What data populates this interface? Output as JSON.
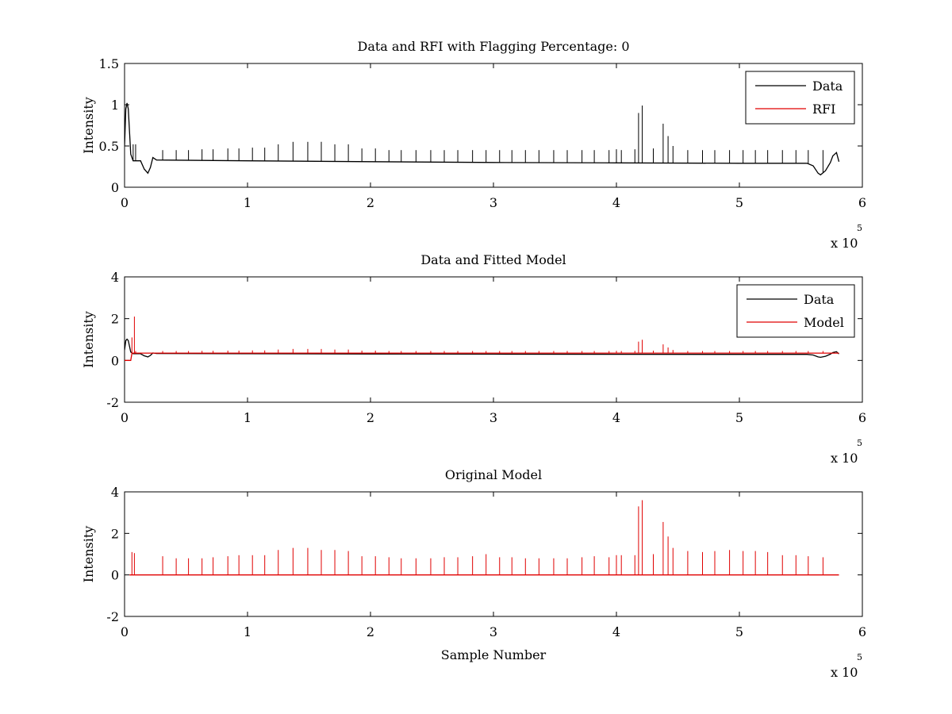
{
  "chart_data": [
    {
      "type": "line",
      "title": "Data and RFI with Flagging Percentage: 0",
      "xlabel": "",
      "ylabel": "Intensity",
      "xlim": [
        0,
        6
      ],
      "ylim": [
        0,
        1.5
      ],
      "x_multiplier": "x 10",
      "x_multiplier_exp": "5",
      "xticks": [
        "0",
        "1",
        "2",
        "3",
        "4",
        "5",
        "6"
      ],
      "yticks": [
        "0",
        "0.5",
        "1",
        "1.5"
      ],
      "legend": {
        "position": "top-right",
        "entries": [
          {
            "name": "Data",
            "color": "#000000"
          },
          {
            "name": "RFI",
            "color": "#e00000"
          }
        ]
      },
      "series": [
        {
          "name": "Data",
          "color": "#000000",
          "baseline": [
            [
              0,
              0.5
            ],
            [
              0.01,
              0.95
            ],
            [
              0.02,
              1.02
            ],
            [
              0.03,
              0.95
            ],
            [
              0.05,
              0.4
            ],
            [
              0.07,
              0.32
            ],
            [
              0.13,
              0.32
            ],
            [
              0.16,
              0.22
            ],
            [
              0.19,
              0.17
            ],
            [
              0.21,
              0.24
            ],
            [
              0.23,
              0.36
            ],
            [
              0.26,
              0.33
            ],
            [
              1,
              0.32
            ],
            [
              2,
              0.31
            ],
            [
              3,
              0.3
            ],
            [
              4,
              0.295
            ],
            [
              5,
              0.29
            ],
            [
              5.55,
              0.29
            ],
            [
              5.6,
              0.26
            ],
            [
              5.64,
              0.17
            ],
            [
              5.66,
              0.15
            ],
            [
              5.7,
              0.2
            ],
            [
              5.74,
              0.3
            ],
            [
              5.76,
              0.38
            ],
            [
              5.79,
              0.42
            ],
            [
              5.81,
              0.31
            ]
          ],
          "spikes": [
            [
              0.07,
              0.52
            ],
            [
              0.09,
              0.52
            ],
            [
              0.31,
              0.45
            ],
            [
              0.42,
              0.45
            ],
            [
              0.52,
              0.45
            ],
            [
              0.63,
              0.46
            ],
            [
              0.72,
              0.46
            ],
            [
              0.84,
              0.47
            ],
            [
              0.93,
              0.47
            ],
            [
              1.04,
              0.48
            ],
            [
              1.14,
              0.48
            ],
            [
              1.25,
              0.52
            ],
            [
              1.37,
              0.55
            ],
            [
              1.49,
              0.55
            ],
            [
              1.6,
              0.55
            ],
            [
              1.71,
              0.52
            ],
            [
              1.82,
              0.52
            ],
            [
              1.93,
              0.47
            ],
            [
              2.04,
              0.47
            ],
            [
              2.15,
              0.45
            ],
            [
              2.25,
              0.45
            ],
            [
              2.37,
              0.45
            ],
            [
              2.49,
              0.45
            ],
            [
              2.6,
              0.45
            ],
            [
              2.71,
              0.45
            ],
            [
              2.83,
              0.45
            ],
            [
              2.94,
              0.45
            ],
            [
              3.05,
              0.45
            ],
            [
              3.15,
              0.45
            ],
            [
              3.26,
              0.45
            ],
            [
              3.37,
              0.45
            ],
            [
              3.49,
              0.45
            ],
            [
              3.6,
              0.45
            ],
            [
              3.72,
              0.45
            ],
            [
              3.82,
              0.45
            ],
            [
              3.94,
              0.45
            ],
            [
              4.0,
              0.46
            ],
            [
              4.04,
              0.45
            ],
            [
              4.15,
              0.46
            ],
            [
              4.18,
              0.9
            ],
            [
              4.21,
              0.99
            ],
            [
              4.3,
              0.47
            ],
            [
              4.38,
              0.77
            ],
            [
              4.42,
              0.62
            ],
            [
              4.46,
              0.5
            ],
            [
              4.58,
              0.45
            ],
            [
              4.7,
              0.45
            ],
            [
              4.8,
              0.45
            ],
            [
              4.92,
              0.45
            ],
            [
              5.03,
              0.45
            ],
            [
              5.13,
              0.45
            ],
            [
              5.23,
              0.45
            ],
            [
              5.35,
              0.45
            ],
            [
              5.46,
              0.45
            ],
            [
              5.56,
              0.45
            ],
            [
              5.68,
              0.45
            ]
          ]
        },
        {
          "name": "RFI",
          "color": "#e00000",
          "points": []
        }
      ]
    },
    {
      "type": "line",
      "title": "Data and Fitted Model",
      "xlabel": "",
      "ylabel": "Intensity",
      "xlim": [
        0,
        6
      ],
      "ylim": [
        -2,
        4
      ],
      "x_multiplier": "x 10",
      "x_multiplier_exp": "5",
      "xticks": [
        "0",
        "1",
        "2",
        "3",
        "4",
        "5",
        "6"
      ],
      "yticks": [
        "-2",
        "0",
        "2",
        "4"
      ],
      "legend": {
        "position": "top-right",
        "entries": [
          {
            "name": "Data",
            "color": "#000000"
          },
          {
            "name": "Model",
            "color": "#e00000"
          }
        ]
      },
      "series": [
        {
          "name": "Data",
          "color": "#000000",
          "baseline": [
            [
              0,
              0.5
            ],
            [
              0.01,
              0.95
            ],
            [
              0.02,
              1.02
            ],
            [
              0.03,
              0.95
            ],
            [
              0.05,
              0.4
            ],
            [
              0.07,
              0.32
            ],
            [
              0.13,
              0.32
            ],
            [
              0.16,
              0.22
            ],
            [
              0.19,
              0.17
            ],
            [
              0.21,
              0.24
            ],
            [
              0.23,
              0.36
            ],
            [
              0.26,
              0.33
            ],
            [
              1,
              0.32
            ],
            [
              2,
              0.31
            ],
            [
              3,
              0.3
            ],
            [
              4,
              0.295
            ],
            [
              5,
              0.29
            ],
            [
              5.55,
              0.29
            ],
            [
              5.6,
              0.26
            ],
            [
              5.64,
              0.17
            ],
            [
              5.66,
              0.15
            ],
            [
              5.7,
              0.2
            ],
            [
              5.74,
              0.3
            ],
            [
              5.76,
              0.38
            ],
            [
              5.79,
              0.42
            ],
            [
              5.81,
              0.31
            ]
          ],
          "spikes": []
        },
        {
          "name": "Model",
          "color": "#e00000",
          "baseline": [
            [
              0,
              0
            ],
            [
              0.05,
              0
            ],
            [
              0.06,
              0.35
            ],
            [
              5.81,
              0.35
            ]
          ],
          "spikes": [
            [
              0.06,
              1.1
            ],
            [
              0.08,
              2.1
            ],
            [
              0.09,
              0.45
            ],
            [
              0.31,
              0.45
            ],
            [
              0.42,
              0.45
            ],
            [
              0.52,
              0.45
            ],
            [
              0.63,
              0.46
            ],
            [
              0.72,
              0.46
            ],
            [
              0.84,
              0.47
            ],
            [
              0.93,
              0.47
            ],
            [
              1.04,
              0.48
            ],
            [
              1.14,
              0.48
            ],
            [
              1.25,
              0.52
            ],
            [
              1.37,
              0.55
            ],
            [
              1.49,
              0.55
            ],
            [
              1.6,
              0.55
            ],
            [
              1.71,
              0.52
            ],
            [
              1.82,
              0.52
            ],
            [
              1.93,
              0.47
            ],
            [
              2.04,
              0.47
            ],
            [
              2.15,
              0.45
            ],
            [
              2.25,
              0.45
            ],
            [
              2.37,
              0.45
            ],
            [
              2.49,
              0.45
            ],
            [
              2.6,
              0.45
            ],
            [
              2.71,
              0.45
            ],
            [
              2.83,
              0.45
            ],
            [
              2.94,
              0.45
            ],
            [
              3.05,
              0.45
            ],
            [
              3.15,
              0.45
            ],
            [
              3.26,
              0.45
            ],
            [
              3.37,
              0.45
            ],
            [
              3.49,
              0.45
            ],
            [
              3.6,
              0.45
            ],
            [
              3.72,
              0.45
            ],
            [
              3.82,
              0.45
            ],
            [
              3.94,
              0.45
            ],
            [
              4.0,
              0.46
            ],
            [
              4.04,
              0.45
            ],
            [
              4.15,
              0.46
            ],
            [
              4.18,
              0.9
            ],
            [
              4.21,
              0.99
            ],
            [
              4.3,
              0.47
            ],
            [
              4.38,
              0.77
            ],
            [
              4.42,
              0.62
            ],
            [
              4.46,
              0.5
            ],
            [
              4.58,
              0.45
            ],
            [
              4.7,
              0.45
            ],
            [
              4.8,
              0.45
            ],
            [
              4.92,
              0.45
            ],
            [
              5.03,
              0.45
            ],
            [
              5.13,
              0.45
            ],
            [
              5.23,
              0.45
            ],
            [
              5.35,
              0.45
            ],
            [
              5.46,
              0.45
            ],
            [
              5.56,
              0.45
            ],
            [
              5.68,
              0.45
            ]
          ]
        }
      ]
    },
    {
      "type": "line",
      "title": "Original Model",
      "xlabel": "Sample Number",
      "ylabel": "Intensity",
      "xlim": [
        0,
        6
      ],
      "ylim": [
        -2,
        4
      ],
      "x_multiplier": "x 10",
      "x_multiplier_exp": "5",
      "xticks": [
        "0",
        "1",
        "2",
        "3",
        "4",
        "5",
        "6"
      ],
      "yticks": [
        "-2",
        "0",
        "2",
        "4"
      ],
      "series": [
        {
          "name": "",
          "color": "#e00000",
          "baseline": [
            [
              0.04,
              0
            ],
            [
              5.81,
              0
            ]
          ],
          "spikes": [
            [
              0.06,
              1.1
            ],
            [
              0.08,
              1.05
            ],
            [
              0.31,
              0.9
            ],
            [
              0.42,
              0.8
            ],
            [
              0.52,
              0.8
            ],
            [
              0.63,
              0.8
            ],
            [
              0.72,
              0.85
            ],
            [
              0.84,
              0.9
            ],
            [
              0.93,
              0.95
            ],
            [
              1.04,
              0.95
            ],
            [
              1.14,
              0.95
            ],
            [
              1.25,
              1.2
            ],
            [
              1.37,
              1.3
            ],
            [
              1.49,
              1.3
            ],
            [
              1.6,
              1.2
            ],
            [
              1.71,
              1.2
            ],
            [
              1.82,
              1.15
            ],
            [
              1.93,
              0.9
            ],
            [
              2.04,
              0.9
            ],
            [
              2.15,
              0.85
            ],
            [
              2.25,
              0.8
            ],
            [
              2.37,
              0.8
            ],
            [
              2.49,
              0.8
            ],
            [
              2.6,
              0.85
            ],
            [
              2.71,
              0.85
            ],
            [
              2.83,
              0.9
            ],
            [
              2.94,
              1.0
            ],
            [
              3.05,
              0.85
            ],
            [
              3.15,
              0.85
            ],
            [
              3.26,
              0.8
            ],
            [
              3.37,
              0.8
            ],
            [
              3.49,
              0.8
            ],
            [
              3.6,
              0.8
            ],
            [
              3.72,
              0.85
            ],
            [
              3.82,
              0.9
            ],
            [
              3.94,
              0.85
            ],
            [
              4.0,
              0.95
            ],
            [
              4.04,
              0.95
            ],
            [
              4.15,
              0.95
            ],
            [
              4.18,
              3.3
            ],
            [
              4.21,
              3.6
            ],
            [
              4.3,
              1.0
            ],
            [
              4.38,
              2.55
            ],
            [
              4.42,
              1.85
            ],
            [
              4.46,
              1.3
            ],
            [
              4.58,
              1.15
            ],
            [
              4.7,
              1.1
            ],
            [
              4.8,
              1.15
            ],
            [
              4.92,
              1.2
            ],
            [
              5.03,
              1.15
            ],
            [
              5.13,
              1.15
            ],
            [
              5.23,
              1.1
            ],
            [
              5.35,
              0.95
            ],
            [
              5.46,
              0.95
            ],
            [
              5.56,
              0.9
            ],
            [
              5.68,
              0.85
            ]
          ]
        }
      ]
    }
  ]
}
